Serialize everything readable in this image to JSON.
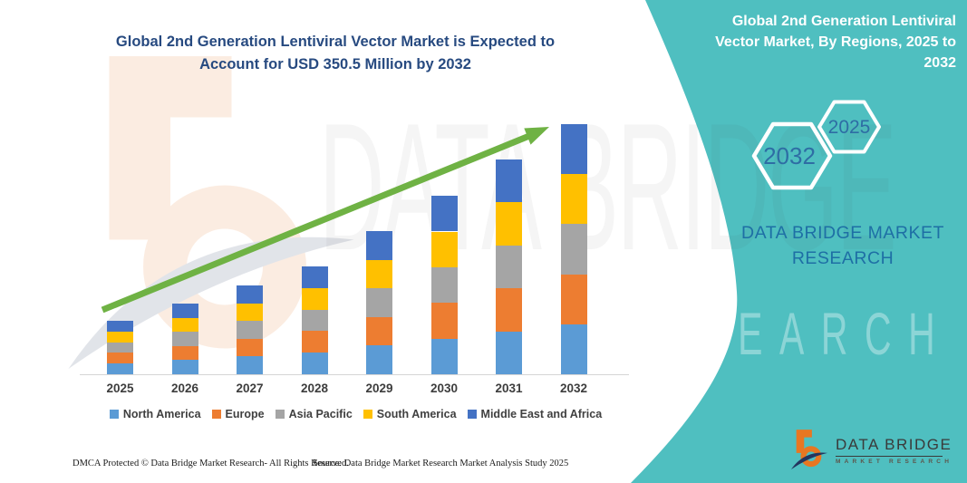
{
  "header": {
    "left_title_lines": [
      "Global 2nd Generation Lentiviral Vector Market is Expected to",
      "Account for USD 350.5 Million by 2032"
    ],
    "right_title_lines": [
      "Global 2nd Generation Lentiviral",
      "Vector Market, By Regions, 2025 to",
      "2032"
    ]
  },
  "side_panel": {
    "hexagon_back_label": "2032",
    "hexagon_front_label": "2025",
    "brand_lines": [
      "DATA BRIDGE MARKET",
      "RESEARCH"
    ]
  },
  "watermark": {
    "text_primary": "DATA BRIDGE",
    "text_secondary": "MARKET RESEARCH"
  },
  "chart_data": {
    "type": "bar",
    "stacked": true,
    "title": "Global 2nd Generation Lentiviral Vector Market, By Regions, 2025 to 2032",
    "unit": "USD Million",
    "categories": [
      "2025",
      "2026",
      "2027",
      "2028",
      "2029",
      "2030",
      "2031",
      "2032"
    ],
    "series": [
      {
        "name": "North America",
        "color": "#5B9BD5",
        "values": [
          15.0,
          19.8,
          24.9,
          30.2,
          40.1,
          50.0,
          60.2,
          70.1
        ]
      },
      {
        "name": "Europe",
        "color": "#ED7D31",
        "values": [
          15.0,
          19.8,
          24.9,
          30.2,
          40.1,
          50.0,
          60.2,
          70.1
        ]
      },
      {
        "name": "Asia Pacific",
        "color": "#A5A5A5",
        "values": [
          15.0,
          19.8,
          24.9,
          30.2,
          40.1,
          50.0,
          60.2,
          70.1
        ]
      },
      {
        "name": "South America",
        "color": "#FFC000",
        "values": [
          15.0,
          19.8,
          24.9,
          30.2,
          40.1,
          50.0,
          60.2,
          70.1
        ]
      },
      {
        "name": "Middle East and Africa",
        "color": "#4472C4",
        "values": [
          15.0,
          19.8,
          24.9,
          30.2,
          40.1,
          50.0,
          60.2,
          70.1
        ]
      }
    ],
    "totals": [
      75.0,
      99.0,
      124.5,
      151.0,
      200.5,
      250.0,
      301.0,
      350.5
    ],
    "ymax": 350.5,
    "grid": false,
    "legend_position": "bottom",
    "trend_arrow": true,
    "note": "Segment values estimated from bar heights; 2032 total anchored to USD 350.5 Million stated in title"
  },
  "logo": {
    "name": "DATA BRIDGE",
    "sub": "MARKET RESEARCH"
  },
  "footer": {
    "left": "DMCA Protected © Data Bridge Market Research-  All Rights Reserved.",
    "right": "Source: Data Bridge Market Research  Market Analysis Study 2025"
  },
  "colors": {
    "teal_panel": "#4FBFC0",
    "title_blue": "#274A80",
    "hex_label_blue": "#2E6DA4",
    "panel_brand_blue": "#1E6FA5",
    "arrow_green": "#6FB244",
    "axis_gray": "#D6D6D6",
    "logo_orange": "#E87722",
    "logo_navy": "#24355E"
  }
}
